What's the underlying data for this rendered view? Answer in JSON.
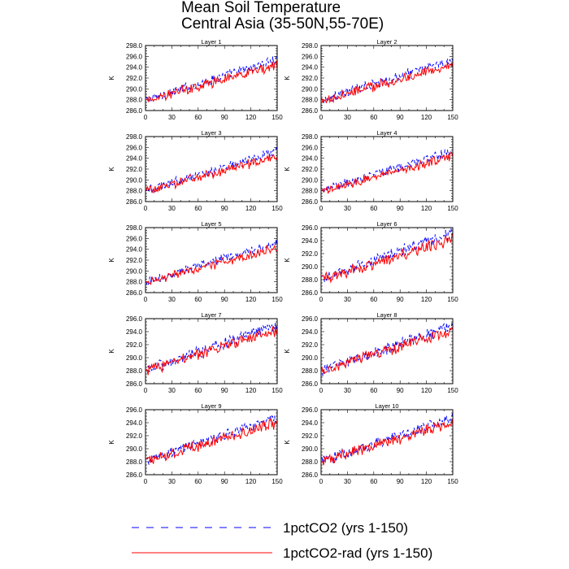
{
  "title": [
    "Mean Soil Temperature",
    "Central Asia (35-50N,55-70E)"
  ],
  "chart_data": {
    "type": "line",
    "title": "Mean Soil Temperature Central Asia (35-50N,55-70E)",
    "ylabel": "K",
    "xlim": [
      0,
      150
    ],
    "x_ticks": [
      0,
      30,
      60,
      90,
      120,
      150
    ],
    "years": [
      1,
      150
    ],
    "series_styles": {
      "1pctCO2 (yrs 1-150)": {
        "color": "#0000ff",
        "dash": "dashed"
      },
      "1pctCO2-rad (yrs 1-150)": {
        "color": "#ff0000",
        "dash": "solid"
      }
    },
    "panels": [
      {
        "name": "Layer 1",
        "ylim": [
          286,
          298
        ],
        "y_ticks": [
          286,
          288,
          290,
          292,
          294,
          296,
          298
        ],
        "series": [
          {
            "name": "1pctCO2 (yrs 1-150)",
            "start": 288.0,
            "end": 295.4
          },
          {
            "name": "1pctCO2-rad (yrs 1-150)",
            "start": 287.9,
            "end": 294.4
          }
        ]
      },
      {
        "name": "Layer 2",
        "ylim": [
          286,
          298
        ],
        "y_ticks": [
          286,
          288,
          290,
          292,
          294,
          296,
          298
        ],
        "series": [
          {
            "name": "1pctCO2 (yrs 1-150)",
            "start": 288.0,
            "end": 295.3
          },
          {
            "name": "1pctCO2-rad (yrs 1-150)",
            "start": 287.9,
            "end": 294.4
          }
        ]
      },
      {
        "name": "Layer 3",
        "ylim": [
          286,
          298
        ],
        "y_ticks": [
          286,
          288,
          290,
          292,
          294,
          296,
          298
        ],
        "series": [
          {
            "name": "1pctCO2 (yrs 1-150)",
            "start": 288.0,
            "end": 295.3
          },
          {
            "name": "1pctCO2-rad (yrs 1-150)",
            "start": 287.9,
            "end": 294.4
          }
        ]
      },
      {
        "name": "Layer 4",
        "ylim": [
          286,
          298
        ],
        "y_ticks": [
          286,
          288,
          290,
          292,
          294,
          296,
          298
        ],
        "series": [
          {
            "name": "1pctCO2 (yrs 1-150)",
            "start": 288.0,
            "end": 295.3
          },
          {
            "name": "1pctCO2-rad (yrs 1-150)",
            "start": 287.9,
            "end": 294.4
          }
        ]
      },
      {
        "name": "Layer 5",
        "ylim": [
          286,
          298
        ],
        "y_ticks": [
          286,
          288,
          290,
          292,
          294,
          296,
          298
        ],
        "series": [
          {
            "name": "1pctCO2 (yrs 1-150)",
            "start": 288.0,
            "end": 295.2
          },
          {
            "name": "1pctCO2-rad (yrs 1-150)",
            "start": 287.9,
            "end": 294.3
          }
        ]
      },
      {
        "name": "Layer 6",
        "ylim": [
          286,
          296
        ],
        "y_ticks": [
          286,
          288,
          290,
          292,
          294,
          296
        ],
        "series": [
          {
            "name": "1pctCO2 (yrs 1-150)",
            "start": 288.1,
            "end": 295.2
          },
          {
            "name": "1pctCO2-rad (yrs 1-150)",
            "start": 288.0,
            "end": 294.3
          }
        ]
      },
      {
        "name": "Layer 7",
        "ylim": [
          286,
          296
        ],
        "y_ticks": [
          286,
          288,
          290,
          292,
          294,
          296
        ],
        "series": [
          {
            "name": "1pctCO2 (yrs 1-150)",
            "start": 288.1,
            "end": 295.0
          },
          {
            "name": "1pctCO2-rad (yrs 1-150)",
            "start": 288.0,
            "end": 294.2
          }
        ]
      },
      {
        "name": "Layer 8",
        "ylim": [
          286,
          296
        ],
        "y_ticks": [
          286,
          288,
          290,
          292,
          294,
          296
        ],
        "series": [
          {
            "name": "1pctCO2 (yrs 1-150)",
            "start": 288.1,
            "end": 294.9
          },
          {
            "name": "1pctCO2-rad (yrs 1-150)",
            "start": 288.0,
            "end": 294.1
          }
        ]
      },
      {
        "name": "Layer 9",
        "ylim": [
          286,
          296
        ],
        "y_ticks": [
          286,
          288,
          290,
          292,
          294,
          296
        ],
        "series": [
          {
            "name": "1pctCO2 (yrs 1-150)",
            "start": 288.2,
            "end": 294.8
          },
          {
            "name": "1pctCO2-rad (yrs 1-150)",
            "start": 288.1,
            "end": 294.1
          }
        ]
      },
      {
        "name": "Layer 10",
        "ylim": [
          286,
          296
        ],
        "y_ticks": [
          286,
          288,
          290,
          292,
          294,
          296
        ],
        "series": [
          {
            "name": "1pctCO2 (yrs 1-150)",
            "start": 288.2,
            "end": 294.7
          },
          {
            "name": "1pctCO2-rad (yrs 1-150)",
            "start": 288.1,
            "end": 294.0
          }
        ]
      }
    ],
    "legend": [
      "1pctCO2 (yrs 1-150)",
      "1pctCO2-rad (yrs 1-150)"
    ],
    "legend_placement": "bottom",
    "grid": false
  }
}
